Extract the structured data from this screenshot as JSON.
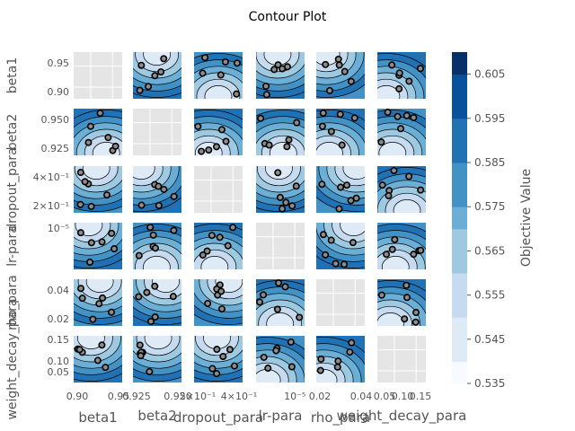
{
  "chart_data": {
    "type": "contour",
    "title": "Contour Plot",
    "params": [
      "beta1",
      "beta2",
      "dropout_para",
      "lr-para",
      "rho_para",
      "weight_decay_para"
    ],
    "param_axis_labels": [
      "beta1",
      "beta2",
      "dropout_para",
      "lr-para",
      "rho_para",
      "weight_decay_para"
    ],
    "x_tick_labels": [
      [
        "0.90",
        "0.95"
      ],
      [
        "0.925",
        "0.950"
      ],
      [
        "2×10⁻¹",
        "4×10⁻¹"
      ],
      [
        "10⁻⁵"
      ],
      [
        "0.02",
        "0.04"
      ],
      [
        "0.05",
        "0.10",
        "0.15"
      ]
    ],
    "y_tick_labels": [
      [
        "0.95",
        "0.90"
      ],
      [
        "0.950",
        "0.925"
      ],
      [
        "4×10⁻¹",
        "2×10⁻¹"
      ],
      [
        "10⁻⁵"
      ],
      [
        "0.04",
        "0.02"
      ],
      [
        "0.15",
        "0.10",
        "0.05"
      ]
    ],
    "colorbar": {
      "label": "Objective Value",
      "ticks": [
        "0.605",
        "0.595",
        "0.585",
        "0.575",
        "0.565",
        "0.555",
        "0.545",
        "0.535"
      ],
      "range": [
        0.535,
        0.61
      ],
      "colormap": "Blues"
    },
    "diagonal_panels": "empty",
    "grid": true
  },
  "colors": {
    "diag_background": "#e5e5e5",
    "marker_fill": "#8c8c8c",
    "contour_line": "#000000"
  }
}
